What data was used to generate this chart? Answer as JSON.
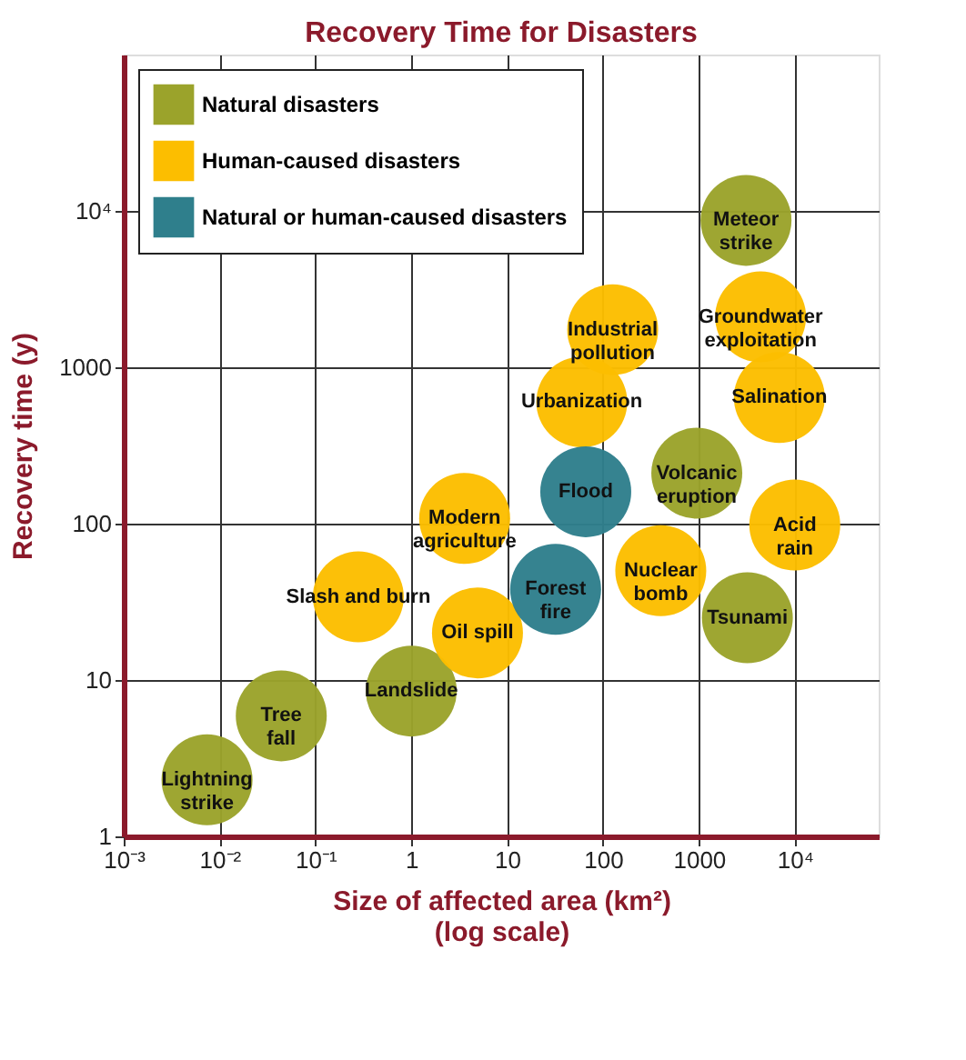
{
  "chart_data": {
    "type": "scatter",
    "title": "Recovery Time for Disasters",
    "xlabel": "Size of affected area (km²)\n(log scale)",
    "ylabel": "Recovery time (y)",
    "log": "xy",
    "grid": true,
    "legend": "top left",
    "marker": "circle",
    "xlim": [
      0.001,
      75000
    ],
    "ylim": [
      1,
      100000
    ],
    "xticks": [
      {
        "value": 0.001,
        "label": "10⁻³"
      },
      {
        "value": 0.01,
        "label": "10⁻²"
      },
      {
        "value": 0.1,
        "label": "10⁻¹"
      },
      1,
      10,
      100,
      {
        "value": 1000,
        "label": "1000"
      },
      {
        "value": 10000,
        "label": "10⁴"
      }
    ],
    "yticks": [
      1,
      10,
      100,
      {
        "value": 1000,
        "label": "1000"
      },
      {
        "value": 10000,
        "label": "10⁴"
      }
    ],
    "series": [
      {
        "name": "Natural disasters",
        "color": "#9ba32b",
        "x": [
          3100,
          950,
          3200,
          1.0,
          0.044,
          0.0074
        ],
        "values": [
          8700,
          210,
          25,
          8.5,
          5.9,
          2.3
        ]
      },
      {
        "name": "Human-caused disasters",
        "color": "#fcbe00",
        "x": [
          126,
          4400,
          60,
          6900,
          3.6,
          10000,
          400,
          0.28,
          4.9
        ],
        "values": [
          1740,
          2100,
          600,
          640,
          108,
          98,
          50,
          34,
          20
        ]
      },
      {
        "name": "Natural or human-caused disasters",
        "color": "#2f7f8c",
        "x": [
          66,
          32
        ],
        "values": [
          160,
          38
        ]
      }
    ],
    "annotations": [
      {
        "text": "Meteor\nstrike",
        "x": 3100,
        "y": 8700
      },
      {
        "text": "Volcanic\neruption",
        "x": 950,
        "y": 210
      },
      {
        "text": "Tsunami",
        "x": 3200,
        "y": 25
      },
      {
        "text": "Landslide",
        "x": 1.0,
        "y": 8.5
      },
      {
        "text": "Tree\nfall",
        "x": 0.044,
        "y": 5.9
      },
      {
        "text": "Lightning\nstrike",
        "x": 0.0074,
        "y": 2.3
      },
      {
        "text": "Industrial\npollution",
        "x": 126,
        "y": 1740
      },
      {
        "text": "Groundwater\nexploitation",
        "x": 4400,
        "y": 2100
      },
      {
        "text": "Urbanization",
        "x": 60,
        "y": 600
      },
      {
        "text": "Salination",
        "x": 6900,
        "y": 640
      },
      {
        "text": "Modern\nagriculture",
        "x": 3.6,
        "y": 108
      },
      {
        "text": "Acid\nrain",
        "x": 10000,
        "y": 98
      },
      {
        "text": "Nuclear\nbomb",
        "x": 400,
        "y": 50
      },
      {
        "text": "Slash and burn",
        "x": 0.28,
        "y": 34
      },
      {
        "text": "Oil spill",
        "x": 4.9,
        "y": 20
      },
      {
        "text": "Flood",
        "x": 66,
        "y": 160
      },
      {
        "text": "Forest\nfire",
        "x": 32,
        "y": 38
      }
    ]
  }
}
